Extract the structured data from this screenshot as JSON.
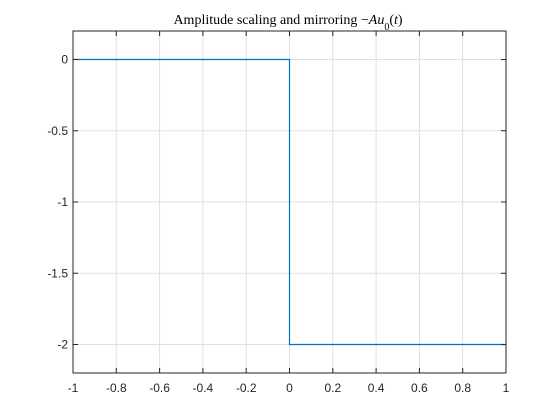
{
  "chart_data": {
    "type": "line",
    "title": {
      "prefix": "Amplitude scaling and mirroring ",
      "minus": "−",
      "var1": "A",
      "var2": "u",
      "sub": "0",
      "open": "(",
      "var3": "t",
      "close": ")"
    },
    "xlabel": "",
    "ylabel": "",
    "xlim": [
      -1,
      1
    ],
    "ylim": [
      -2.2,
      0.2
    ],
    "xticks": [
      -1,
      -0.8,
      -0.6,
      -0.4,
      -0.2,
      0,
      0.2,
      0.4,
      0.6,
      0.8,
      1
    ],
    "xtick_labels": [
      "-1",
      "-0.8",
      "-0.6",
      "-0.4",
      "-0.2",
      "0",
      "0.2",
      "0.4",
      "0.6",
      "0.8",
      "1"
    ],
    "yticks": [
      0,
      -0.5,
      -1,
      -1.5,
      -2
    ],
    "ytick_labels": [
      "0",
      "-0.5",
      "-1",
      "-1.5",
      "-2"
    ],
    "grid": true,
    "series": [
      {
        "x": [
          -1,
          0,
          0,
          1
        ],
        "y": [
          0,
          0,
          -2,
          -2
        ],
        "color": "#0072BD"
      }
    ]
  }
}
